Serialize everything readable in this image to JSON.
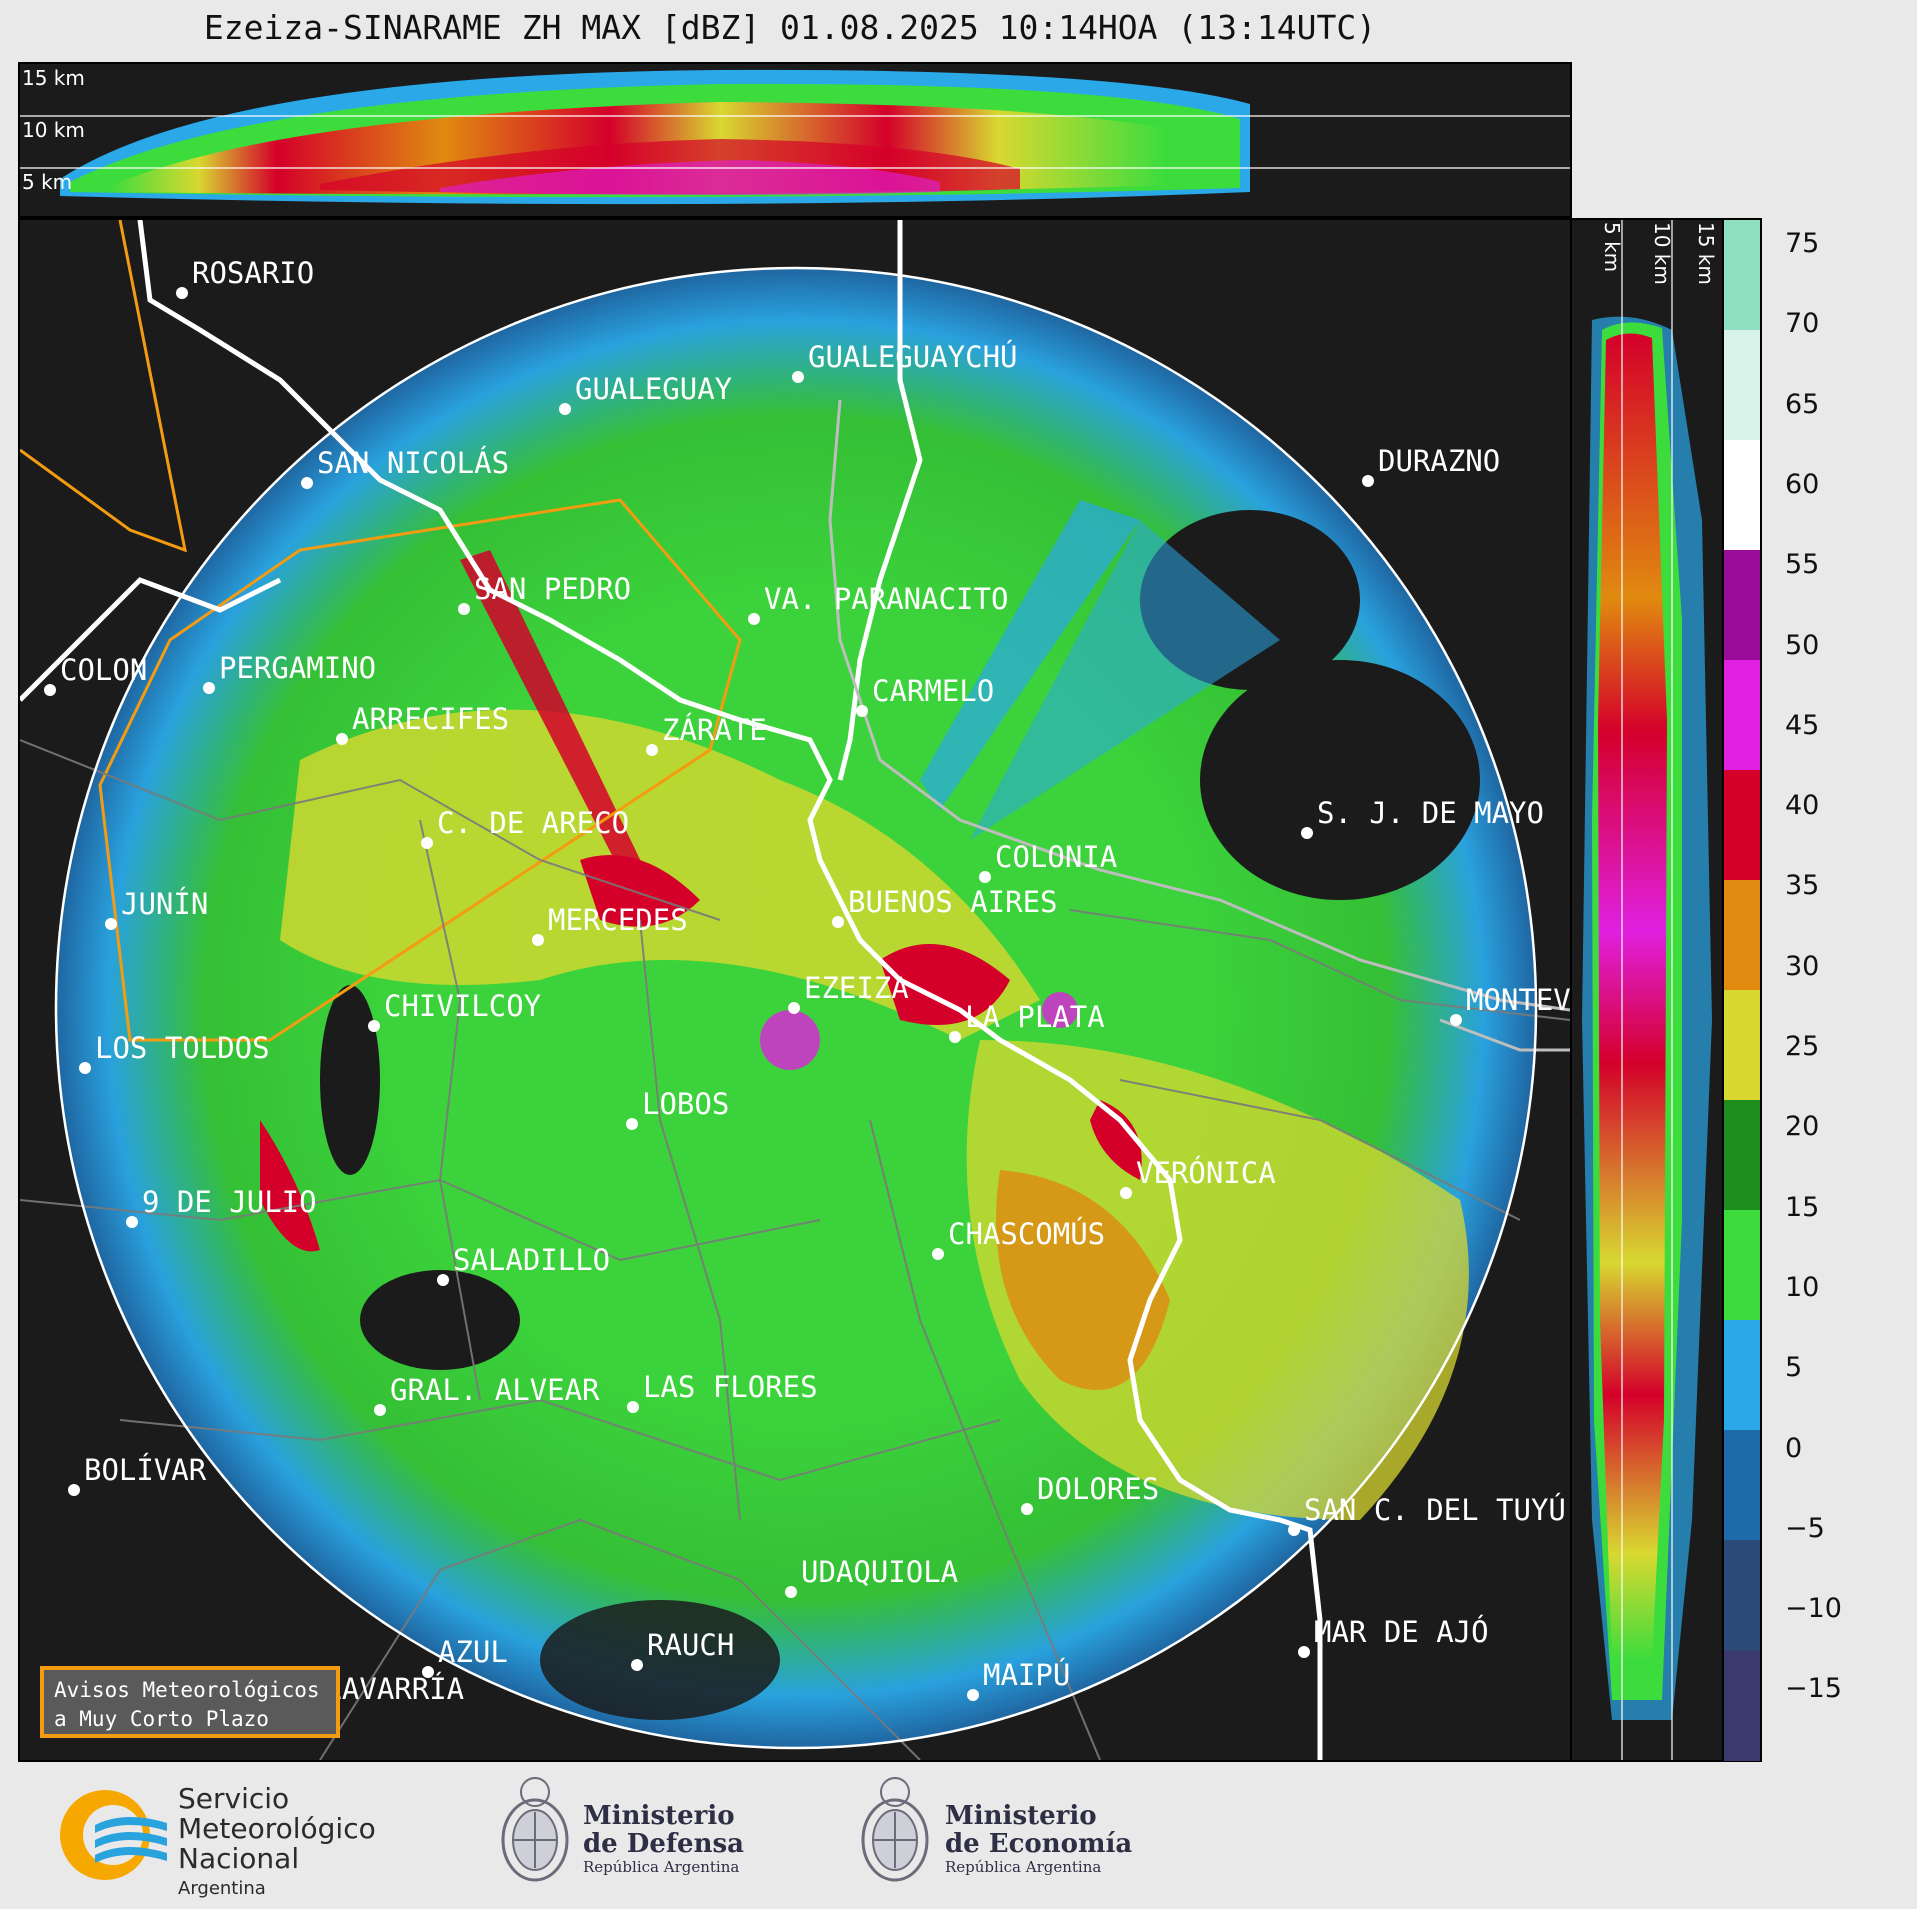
{
  "title": "Ezeiza-SINARAME ZH MAX [dBZ] 01.08.2025 10:14HOA (13:14UTC)",
  "top_panel": {
    "altitude_labels": [
      "15 km",
      "10 km",
      "5 km"
    ]
  },
  "side_panel": {
    "altitude_labels": [
      "5 km",
      "10 km",
      "15 km"
    ]
  },
  "colorbar": {
    "unit": "dBZ",
    "ticks": [
      "75",
      "70",
      "65",
      "60",
      "55",
      "50",
      "45",
      "40",
      "35",
      "30",
      "25",
      "20",
      "15",
      "10",
      "5",
      "0",
      "−5",
      "−10",
      "−15"
    ],
    "colors": [
      "#8ee0c0",
      "#d8f3ea",
      "#ffffff",
      "#9a0c9a",
      "#e020e0",
      "#d4002a",
      "#e08a10",
      "#d8d830",
      "#1e8f1e",
      "#3ddc3d",
      "#2aa8e8",
      "#1f6aa8",
      "#2a4a78",
      "#3a3a6e"
    ]
  },
  "map": {
    "radar_site": "EZEIZA",
    "cities": [
      {
        "name": "ROSARIO"
      },
      {
        "name": "GUALEGUAYCHÚ"
      },
      {
        "name": "GUALEGUAY"
      },
      {
        "name": "SAN NICOLÁS"
      },
      {
        "name": "DURAZNO"
      },
      {
        "name": "SAN PEDRO"
      },
      {
        "name": "VA. PARANACITO"
      },
      {
        "name": "COLON"
      },
      {
        "name": "PERGAMINO"
      },
      {
        "name": "CARMELO"
      },
      {
        "name": "ARRECIFES"
      },
      {
        "name": "ZÁRATE"
      },
      {
        "name": "S. J. DE MAYO"
      },
      {
        "name": "C. DE ARECO"
      },
      {
        "name": "COLONIA"
      },
      {
        "name": "JUNÍN"
      },
      {
        "name": "BUENOS AIRES"
      },
      {
        "name": "MERCEDES"
      },
      {
        "name": "MONTEV"
      },
      {
        "name": "EZEIZA"
      },
      {
        "name": "CHIVILCOY"
      },
      {
        "name": "LA PLATA"
      },
      {
        "name": "LOS TOLDOS"
      },
      {
        "name": "LOBOS"
      },
      {
        "name": "VERÓNICA"
      },
      {
        "name": "9 DE JULIO"
      },
      {
        "name": "CHASCOMÚS"
      },
      {
        "name": "SALADILLO"
      },
      {
        "name": "GRAL. ALVEAR"
      },
      {
        "name": "LAS FLORES"
      },
      {
        "name": "BOLÍVAR"
      },
      {
        "name": "DOLORES"
      },
      {
        "name": "SAN C. DEL TUYÚ"
      },
      {
        "name": "UDAQUIOLA"
      },
      {
        "name": "MAR DE AJÓ"
      },
      {
        "name": "AZUL"
      },
      {
        "name": "RAUCH"
      },
      {
        "name": "OLAVARRÍA"
      },
      {
        "name": "MAIPÚ"
      }
    ]
  },
  "avisos": {
    "line1": "Avisos Meteorológicos",
    "line2": "a Muy Corto Plazo"
  },
  "logos": {
    "smn": {
      "line1": "Servicio",
      "line2": "Meteorológico",
      "line3": "Nacional",
      "line4": "Argentina"
    },
    "defensa": {
      "line1": "Ministerio",
      "line2": "de Defensa",
      "line3": "República Argentina"
    },
    "economia": {
      "line1": "Ministerio",
      "line2": "de Economía",
      "line3": "República Argentina"
    }
  }
}
